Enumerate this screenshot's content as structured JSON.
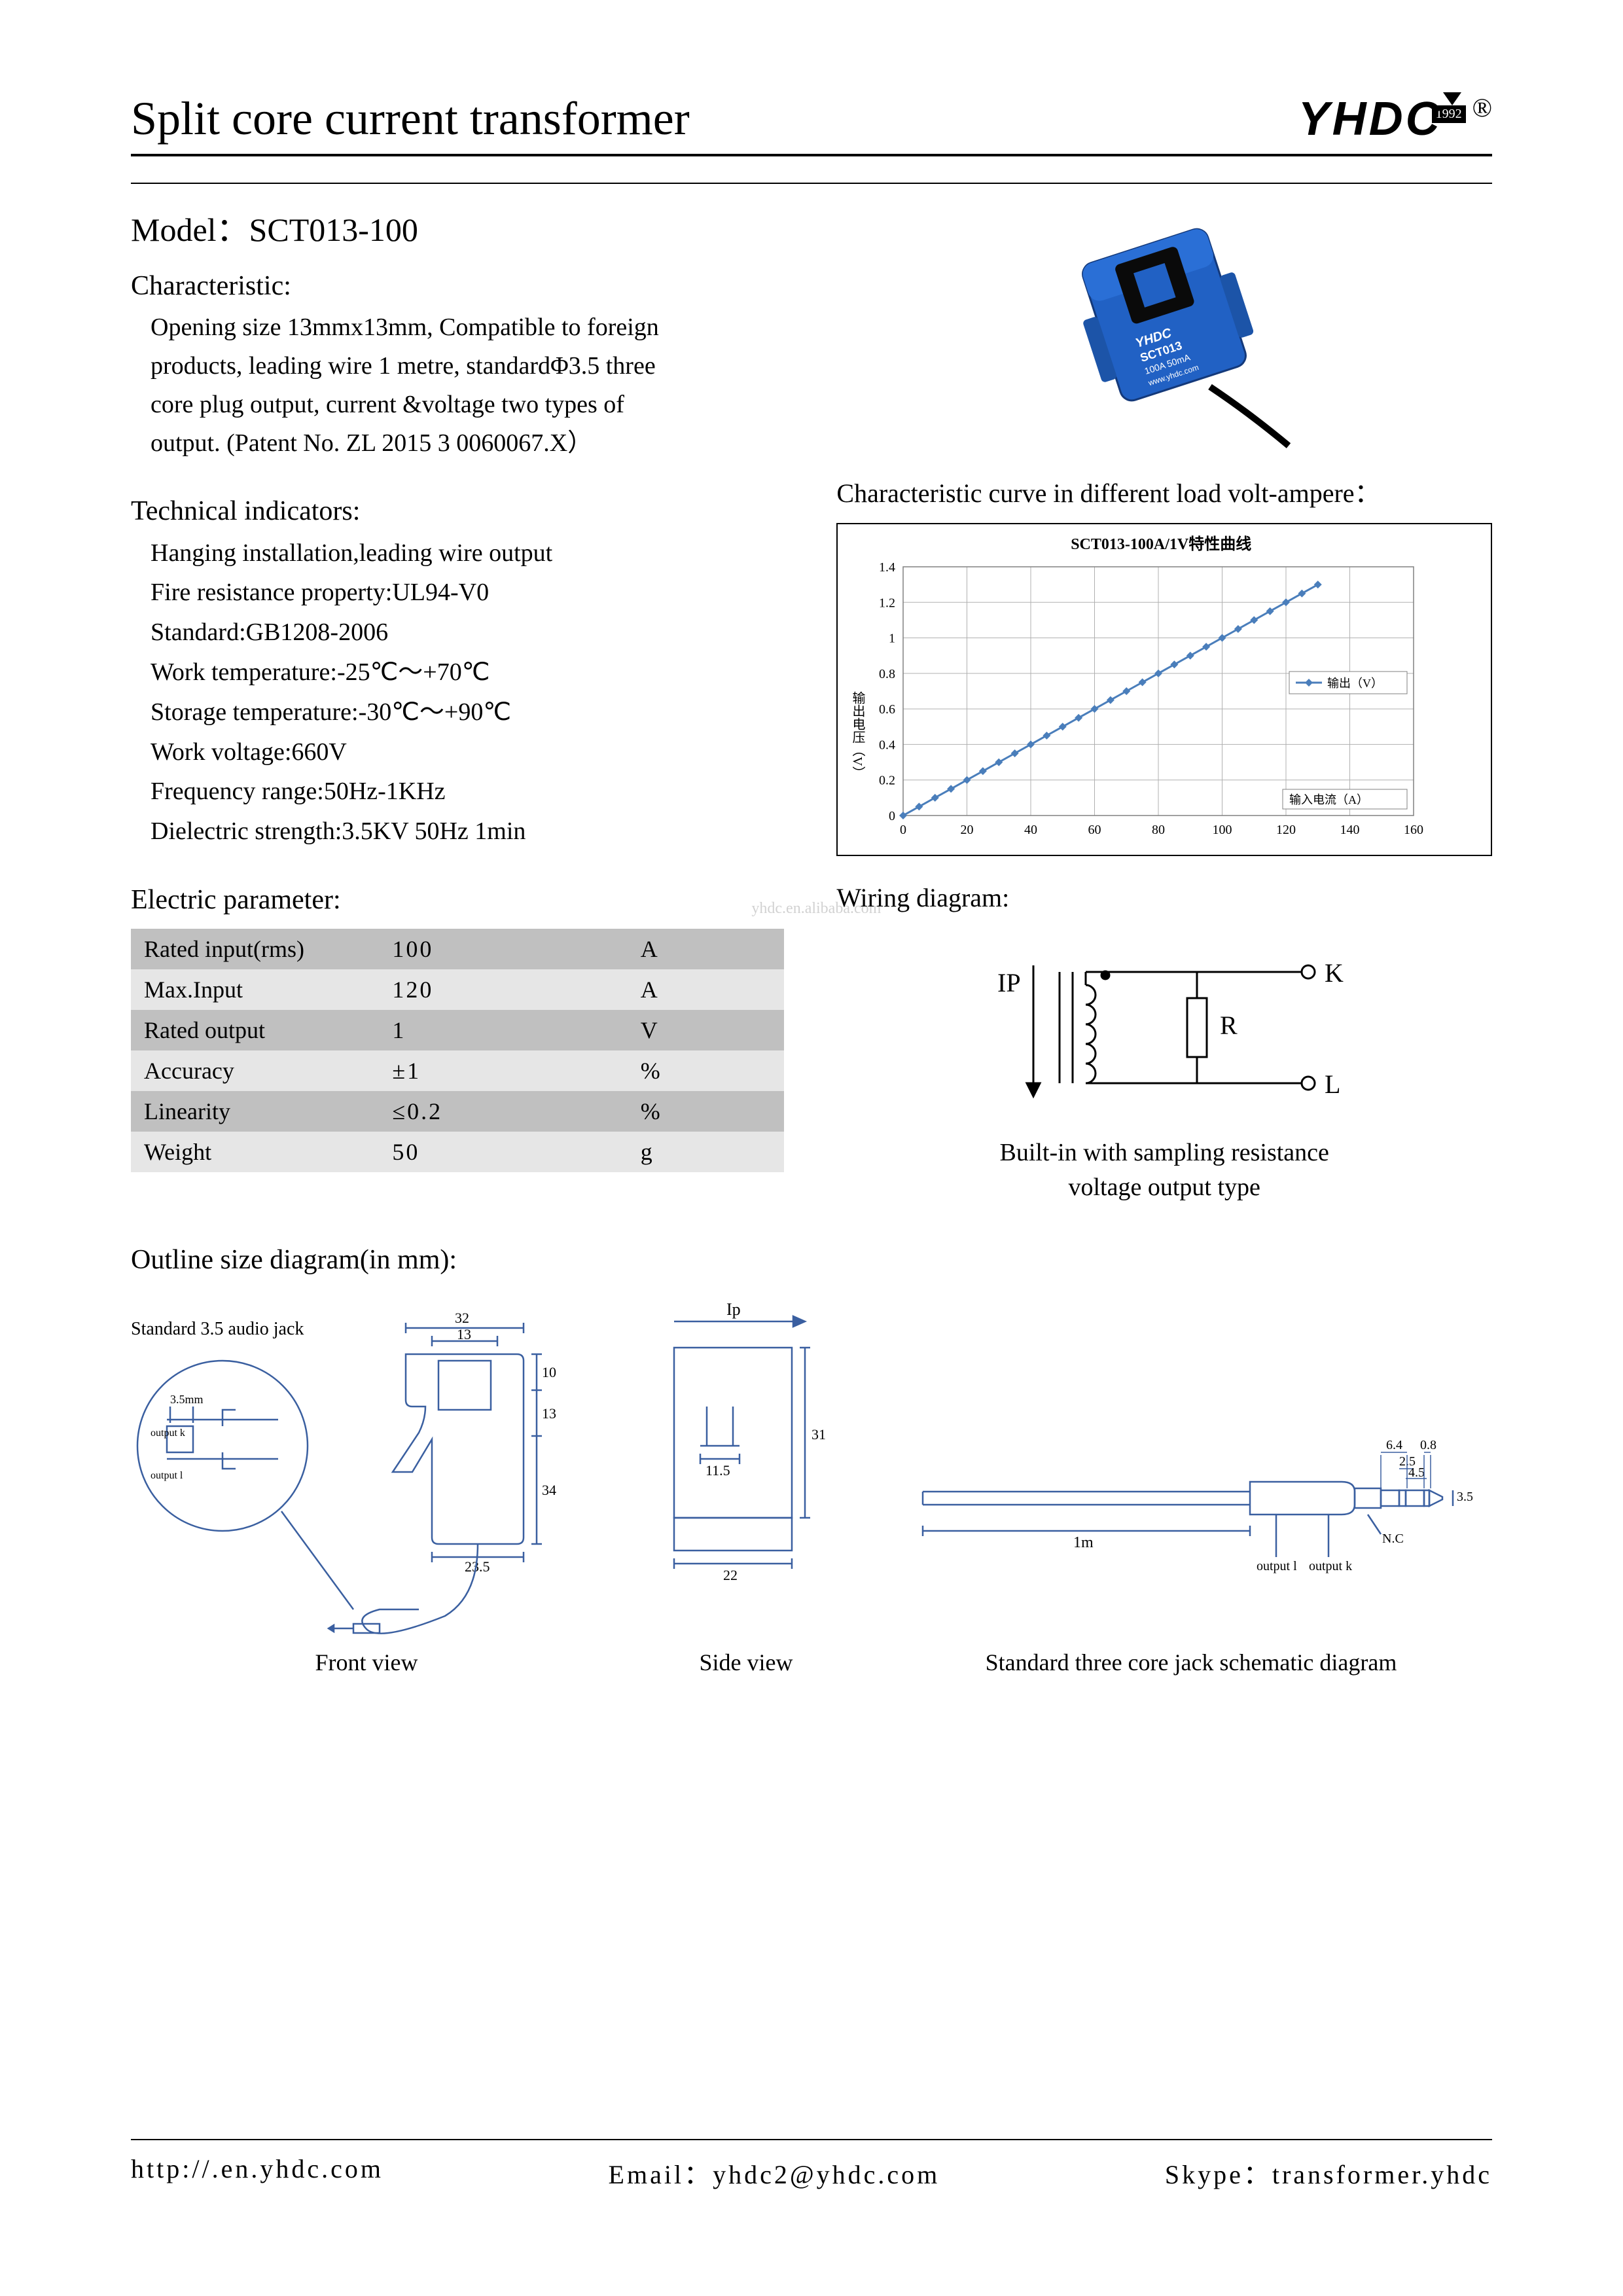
{
  "header": {
    "title": "Split core current transformer",
    "logo_text": "YHDC",
    "logo_year": "1992",
    "reg_mark": "®"
  },
  "model": {
    "label": "Model：",
    "value": "SCT013-100"
  },
  "characteristic": {
    "title": "Characteristic:",
    "text": "Opening size 13mmx13mm, Compatible to foreign products, leading wire 1 metre, standardΦ3.5 three core plug output, current &voltage two types of output. (Patent No. ZL 2015 3 0060067.X）"
  },
  "technical": {
    "title": "Technical indicators:",
    "lines": [
      "Hanging installation,leading wire output",
      "Fire resistance property:UL94-V0",
      "Standard:GB1208-2006",
      "Work temperature:-25℃～+70℃",
      "Storage temperature:-30℃～+90℃",
      "Work voltage:660V",
      "Frequency range:50Hz-1KHz",
      "Dielectric strength:3.5KV 50Hz 1min"
    ]
  },
  "electric": {
    "title": "Electric parameter:",
    "rows": [
      {
        "name": "Rated input(rms)",
        "value": "100",
        "unit": "A"
      },
      {
        "name": "Max.Input",
        "value": "120",
        "unit": "A"
      },
      {
        "name": "Rated output",
        "value": "1",
        "unit": "V"
      },
      {
        "name": "Accuracy",
        "value": "±1",
        "unit": "%"
      },
      {
        "name": "Linearity",
        "value": "≤0.2",
        "unit": "%"
      },
      {
        "name": "Weight",
        "value": "50",
        "unit": "g"
      }
    ],
    "row_colors": {
      "header": "#c0c0c0",
      "alt": "#e6e6e6"
    }
  },
  "curve": {
    "section_title": "Characteristic curve in different load volt-ampere：",
    "chart_title": "SCT013-100A/1V特性曲线",
    "y_axis_label": "输出电压（V）",
    "x_axis_label": "输入电流（A）",
    "legend": "输出（V）",
    "xlim": [
      0,
      160
    ],
    "xtick_step": 20,
    "ylim": [
      0,
      1.4
    ],
    "ytick_step": 0.2,
    "points_x": [
      0,
      5,
      10,
      15,
      20,
      25,
      30,
      35,
      40,
      45,
      50,
      55,
      60,
      65,
      70,
      75,
      80,
      85,
      90,
      95,
      100,
      105,
      110,
      115,
      120,
      125,
      130
    ],
    "points_y": [
      0,
      0.05,
      0.1,
      0.15,
      0.2,
      0.25,
      0.3,
      0.35,
      0.4,
      0.45,
      0.5,
      0.55,
      0.6,
      0.65,
      0.7,
      0.75,
      0.8,
      0.85,
      0.9,
      0.95,
      1.0,
      1.05,
      1.1,
      1.15,
      1.2,
      1.25,
      1.3
    ],
    "line_color": "#4a7ebb",
    "marker_color": "#4a7ebb",
    "grid_color": "#b0b0b0",
    "axis_color": "#808080",
    "background_color": "#ffffff",
    "font_size_axis": 20,
    "font_size_title": 24
  },
  "wiring": {
    "title": "Wiring diagram:",
    "labels": {
      "ip": "IP",
      "k": "K",
      "l": "L",
      "r": "R"
    },
    "caption_l1": "Built-in with sampling resistance",
    "caption_l2": "voltage output type",
    "line_color": "#000000"
  },
  "outline": {
    "title": "Outline size diagram(in mm):",
    "jack_label": "Standard 3.5 audio jack",
    "jack_dims": {
      "tip": "3.5mm",
      "out_k": "output k",
      "out_l": "output l"
    },
    "front": {
      "label": "Front view",
      "dims": {
        "w": "32",
        "opening_w": "13",
        "opening_h": "13",
        "top_h": "10",
        "body_h": "34",
        "base_w": "23.5"
      }
    },
    "side": {
      "label": "Side view",
      "ip_label": "Ip",
      "dims": {
        "h": "31",
        "inner_w": "11.5",
        "base_w": "22"
      }
    },
    "jack_schematic": {
      "label": "Standard three core jack schematic diagram",
      "dims": {
        "cable": "1m",
        "a": "6.4",
        "b": "0.8",
        "c": "2.5",
        "d": "4.5",
        "dia": "3.5",
        "nc": "N.C",
        "out_l": "output l",
        "out_k": "output k"
      }
    },
    "line_color": "#3a5fa0"
  },
  "product_photo": {
    "body_color": "#2161c4",
    "label_line1": "YHDC",
    "label_line2": "SCT013",
    "label_line3": "100A 50mA",
    "label_line4": "www.yhdc.com"
  },
  "watermark": "yhdc.en.alibaba.com",
  "footer": {
    "url": "http://.en.yhdc.com",
    "email_label": "Email：",
    "email": "yhdc2@yhdc.com",
    "skype_label": "Skype：",
    "skype": "transformer.yhdc"
  }
}
